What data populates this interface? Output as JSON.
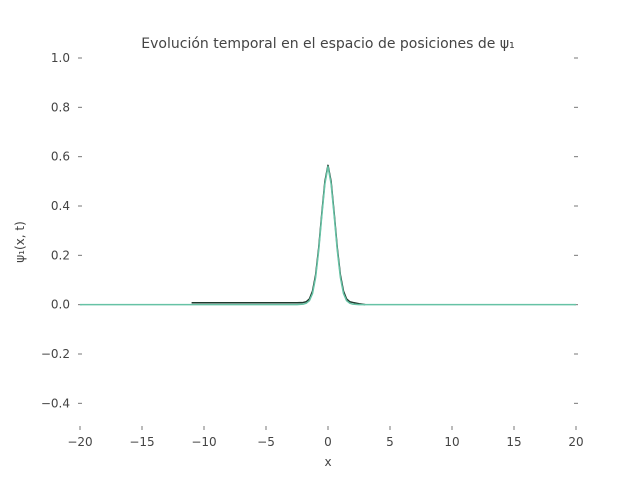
{
  "chart_data": {
    "type": "line",
    "title": "Evolución temporal en el espacio de posiciones de ψ₁",
    "xlabel": "x",
    "ylabel": "ψ₁(x, t)",
    "xlim": [
      -20,
      20
    ],
    "ylim": [
      -0.5,
      1.0
    ],
    "grid": false,
    "x_ticks": [
      -20,
      -15,
      -10,
      -5,
      0,
      5,
      10,
      15,
      20
    ],
    "x_tick_labels": [
      "−20",
      "−15",
      "−10",
      "−5",
      "0",
      "5",
      "10",
      "15",
      "20"
    ],
    "y_ticks": [
      -0.4,
      -0.2,
      0.0,
      0.2,
      0.4,
      0.6,
      0.8,
      1.0
    ],
    "y_tick_labels": [
      "−0.4",
      "−0.2",
      "0.0",
      "0.2",
      "0.4",
      "0.6",
      "0.8",
      "1.0"
    ],
    "series": [
      {
        "color": "#1f3a2e",
        "x": [
          -11,
          -10,
          -8,
          -6,
          -4,
          -3,
          -2.5,
          -2,
          -1.75,
          -1.5,
          -1.25,
          -1,
          -0.75,
          -0.5,
          -0.25,
          0,
          0.25,
          0.5,
          0.75,
          1,
          1.25,
          1.5,
          1.75,
          2,
          2.5,
          3
        ],
        "y": [
          0.008,
          0.008,
          0.008,
          0.008,
          0.008,
          0.008,
          0.008,
          0.009,
          0.012,
          0.023,
          0.055,
          0.12,
          0.23,
          0.37,
          0.5,
          0.565,
          0.5,
          0.37,
          0.23,
          0.12,
          0.055,
          0.023,
          0.012,
          0.009,
          0.004,
          0.0
        ]
      },
      {
        "color": "#66c2a5",
        "x": [
          -20,
          -15,
          -10,
          -5,
          -3,
          -2.5,
          -2,
          -1.75,
          -1.5,
          -1.25,
          -1,
          -0.75,
          -0.5,
          -0.25,
          0,
          0.25,
          0.5,
          0.75,
          1,
          1.25,
          1.5,
          1.75,
          2,
          2.5,
          3,
          5,
          10,
          15,
          20
        ],
        "y": [
          0.0,
          0.0,
          0.0,
          0.0,
          0.0,
          0.0,
          0.002,
          0.006,
          0.016,
          0.045,
          0.11,
          0.22,
          0.36,
          0.49,
          0.56,
          0.49,
          0.36,
          0.22,
          0.11,
          0.045,
          0.016,
          0.006,
          0.002,
          0.0,
          0.0,
          0.0,
          0.0,
          0.0,
          0.0
        ]
      }
    ]
  }
}
